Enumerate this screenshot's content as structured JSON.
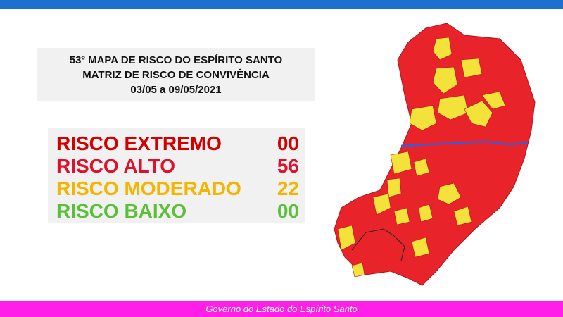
{
  "header": {
    "title_lines": [
      "53º MAPA DE RISCO DO ESPÍRITO SANTO",
      "MATRIZ DE RISCO DE CONVIVÊNCIA",
      "03/05 a 09/05/2021"
    ]
  },
  "risk_table": {
    "rows": [
      {
        "label": "RISCO EXTREMO",
        "count": "00"
      },
      {
        "label": "RISCO ALTO",
        "count": "56"
      },
      {
        "label": "RISCO MODERADO",
        "count": "22"
      },
      {
        "label": "RISCO BAIXO",
        "count": "00"
      }
    ]
  },
  "footer": {
    "text": "Governo do Estado do Espírito Santo"
  }
}
